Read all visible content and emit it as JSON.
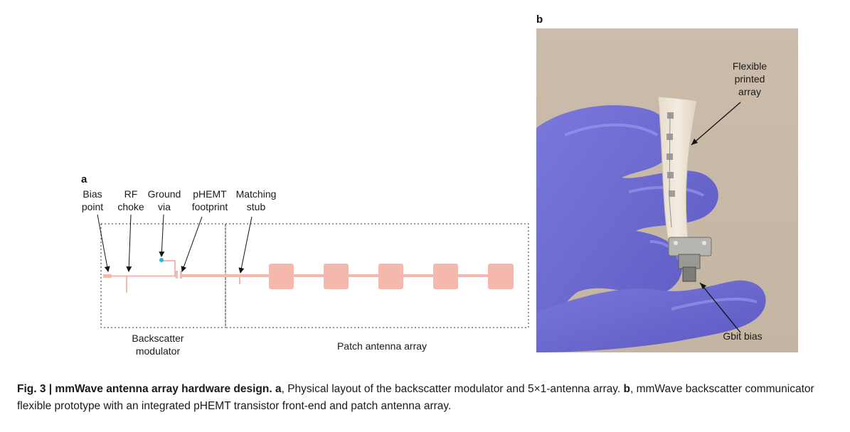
{
  "panel_a": {
    "letter": "a",
    "top_labels": [
      {
        "name": "bias-point-label",
        "lines": [
          "Bias",
          "point"
        ]
      },
      {
        "name": "rf-choke-label",
        "lines": [
          "RF",
          "choke"
        ]
      },
      {
        "name": "ground-via-label",
        "lines": [
          "Ground",
          "via"
        ]
      },
      {
        "name": "phemt-footprint-label",
        "lines": [
          "pHEMT",
          "footprint"
        ]
      },
      {
        "name": "matching-stub-label",
        "lines": [
          "Matching",
          "stub"
        ]
      }
    ],
    "backscatter_label": [
      "Backscatter",
      "modulator"
    ],
    "patch_label": "Patch antenna array",
    "colors": {
      "trace": "#f5b8ad",
      "via": "#29b5d6",
      "dash": "#333333"
    }
  },
  "panel_b": {
    "letter": "b",
    "flexible_label": [
      "Flexible",
      "printed",
      "array"
    ],
    "gbit_label": "Gbit bias",
    "photo_description_colors": {
      "background": "#c9bba9",
      "glove": "#6f6ed6",
      "paper": "#efe6d6"
    }
  },
  "caption": {
    "prefix": "Fig. 3 | mmWave antenna array hardware design. ",
    "a_letter": "a",
    "a_text": ", Physical layout of the backscatter modulator and 5×1-antenna array. ",
    "b_letter": "b",
    "b_text": ", mmWave backscatter communicator flexible prototype with an integrated pHEMT transistor front-end and patch antenna array."
  }
}
